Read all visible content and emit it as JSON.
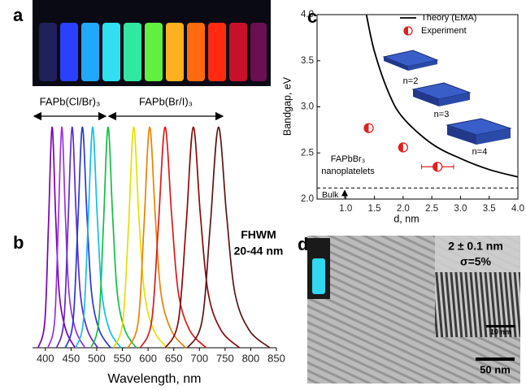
{
  "panel_labels": {
    "a": "a",
    "b": "b",
    "c": "c",
    "d": "d"
  },
  "tem_image": {
    "size_label": "2 ± 0.1 nm",
    "dispersion_label": "σ=5%",
    "inset_scale": "10 nm",
    "scale": "50 nm"
  },
  "chart_data": [
    {
      "type": "line",
      "xlabel": "Wavelength, nm",
      "group_labels": [
        "FAPb(Cl/Br)₃",
        "FAPb(Br/I)₃"
      ],
      "annotations": [
        "FHWM",
        "20-44 nm"
      ],
      "xlim": [
        375,
        850
      ],
      "xticks": [
        400,
        450,
        500,
        550,
        600,
        650,
        700,
        750,
        800,
        850
      ],
      "ylim": [
        0,
        1.05
      ],
      "series": [
        {
          "color": "#7a00b8",
          "x": [
            386,
            399,
            406,
            413,
            420,
            427,
            440,
            458
          ],
          "values": [
            0,
            0.12,
            0.55,
            1,
            0.6,
            0.25,
            0.08,
            0
          ]
        },
        {
          "color": "#9a30e0",
          "x": [
            405,
            418,
            425,
            432,
            439,
            446,
            459,
            477
          ],
          "values": [
            0,
            0.12,
            0.55,
            1,
            0.6,
            0.25,
            0.08,
            0
          ]
        },
        {
          "color": "#5a2ad0",
          "x": [
            422,
            436,
            444,
            452,
            460,
            468,
            482,
            502
          ],
          "values": [
            0,
            0.12,
            0.55,
            1,
            0.6,
            0.25,
            0.08,
            0
          ]
        },
        {
          "color": "#2838d8",
          "x": [
            439,
            454,
            463,
            472,
            481,
            490,
            505,
            527
          ],
          "values": [
            0,
            0.12,
            0.55,
            1,
            0.6,
            0.25,
            0.08,
            0
          ]
        },
        {
          "color": "#10c0e8",
          "x": [
            459,
            474,
            483,
            492,
            501,
            510,
            525,
            547
          ],
          "values": [
            0,
            0.12,
            0.55,
            1,
            0.6,
            0.25,
            0.08,
            0
          ]
        },
        {
          "color": "#10c040",
          "x": [
            489,
            504,
            513,
            522,
            531,
            540,
            555,
            577
          ],
          "values": [
            0,
            0.12,
            0.55,
            1,
            0.6,
            0.25,
            0.08,
            0
          ]
        },
        {
          "color": "#e6e000",
          "x": [
            533,
            551,
            562,
            572,
            582,
            593,
            611,
            637
          ],
          "values": [
            0,
            0.12,
            0.55,
            1,
            0.6,
            0.25,
            0.08,
            0
          ]
        },
        {
          "color": "#f08000",
          "x": [
            561,
            581,
            592,
            603,
            614,
            625,
            645,
            673
          ],
          "values": [
            0,
            0.12,
            0.55,
            1,
            0.6,
            0.25,
            0.08,
            0
          ]
        },
        {
          "color": "#e01818",
          "x": [
            585,
            607,
            620,
            633,
            646,
            659,
            681,
            713
          ],
          "values": [
            0,
            0.12,
            0.55,
            1,
            0.6,
            0.25,
            0.08,
            0
          ]
        },
        {
          "color": "#8a0a0a",
          "x": [
            634,
            659,
            674,
            688,
            702,
            717,
            742,
            778
          ],
          "values": [
            0,
            0.12,
            0.55,
            1,
            0.6,
            0.25,
            0.08,
            0
          ]
        },
        {
          "color": "#5e1414",
          "x": [
            677,
            705,
            721,
            737,
            753,
            769,
            797,
            837
          ],
          "values": [
            0,
            0.12,
            0.55,
            1,
            0.6,
            0.25,
            0.08,
            0
          ]
        }
      ]
    },
    {
      "type": "line",
      "xlabel": "d, nm",
      "ylabel": "Bandgap, eV",
      "xlim": [
        0.5,
        4.0
      ],
      "xticks": [
        {
          "value": 1,
          "label": "1.0"
        },
        1.5,
        {
          "value": 2,
          "label": "2.0"
        },
        2.5,
        {
          "value": 3,
          "label": "3.0"
        },
        3.5,
        {
          "value": 4,
          "label": "4.0"
        }
      ],
      "ylim": [
        2.0,
        4.0
      ],
      "yticks": [
        {
          "value": 2,
          "label": "2.0"
        },
        2.5,
        {
          "value": 3,
          "label": "3.0"
        },
        3.5,
        {
          "value": 4,
          "label": "4.0"
        }
      ],
      "legend": "upper right",
      "series": [
        {
          "name": "Theory (EMA)",
          "color": "#000000",
          "x": [
            1.36,
            1.5,
            1.75,
            2.0,
            2.5,
            3.0,
            3.5,
            4.0
          ],
          "values": [
            4.0,
            3.6,
            3.15,
            2.88,
            2.6,
            2.44,
            2.32,
            2.24
          ]
        },
        {
          "name": "Experiment",
          "color": "#e02020",
          "marker": "half-filled-circle",
          "x": [
            1.4,
            2.0,
            2.6
          ],
          "values": [
            2.77,
            2.56,
            2.35
          ],
          "xerr": [
            null,
            null,
            0.28
          ]
        }
      ],
      "reference_line": {
        "label": "Bulk",
        "value": 2.12
      },
      "annotations": [
        "n=2",
        "n=3",
        "n=4",
        "FAPbBr₃",
        "nanoplatelets"
      ]
    }
  ]
}
